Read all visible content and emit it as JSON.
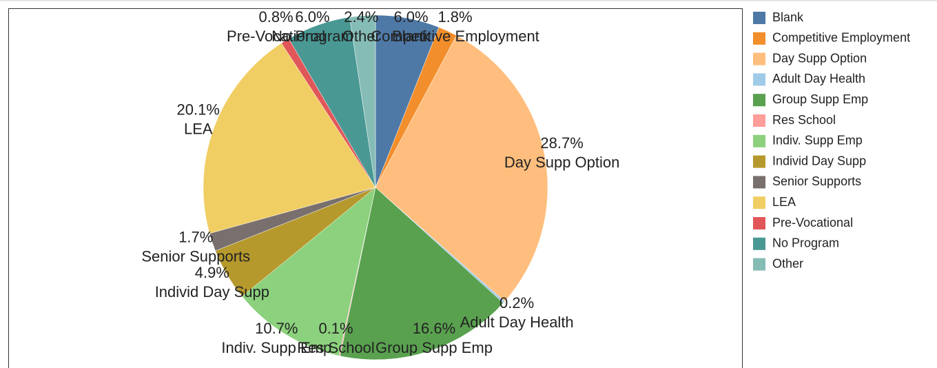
{
  "chart_data": {
    "type": "pie",
    "categories": [
      "Blank",
      "Competitive Employment",
      "Day Supp Option",
      "Adult Day Health",
      "Group Supp Emp",
      "Res School",
      "Indiv. Supp Emp",
      "Individ Day Supp",
      "Senior Supports",
      "LEA",
      "Pre-Vocational",
      "No Program",
      "Other"
    ],
    "values": [
      6.0,
      1.8,
      28.7,
      0.2,
      16.6,
      0.1,
      10.7,
      4.9,
      1.7,
      20.1,
      0.8,
      6.0,
      2.4
    ],
    "value_labels": [
      "6.0%",
      "1.8%",
      "28.7%",
      "0.2%",
      "16.6%",
      "0.1%",
      "10.7%",
      "4.9%",
      "1.7%",
      "20.1%",
      "0.8%",
      "6.0%",
      "2.4%"
    ],
    "colors": [
      "#4e79a7",
      "#f28e2b",
      "#ffbe7d",
      "#a0cbe8",
      "#59a14f",
      "#ff9d9a",
      "#8cd17d",
      "#b6992d",
      "#79706e",
      "#f1ce63",
      "#e15759",
      "#499894",
      "#86bcb6"
    ],
    "legend": "right"
  }
}
